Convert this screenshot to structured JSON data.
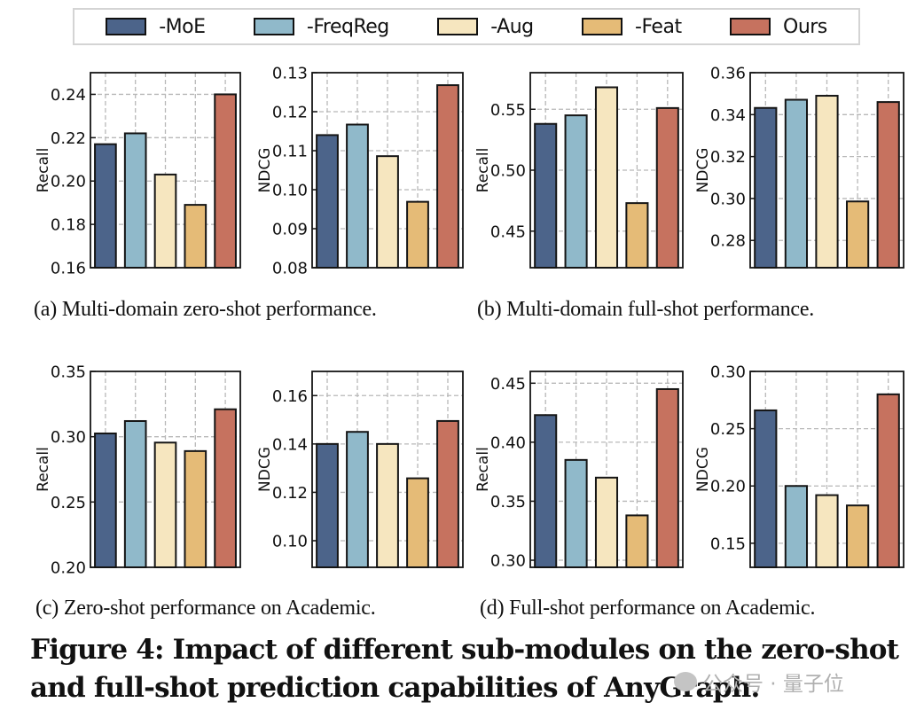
{
  "legend": {
    "items": [
      {
        "label": "-MoE",
        "color": "#4c648a"
      },
      {
        "label": "-FreqReg",
        "color": "#90b9ca"
      },
      {
        "label": "-Aug",
        "color": "#f6e6bf"
      },
      {
        "label": "-Feat",
        "color": "#e5bb77"
      },
      {
        "label": "Ours",
        "color": "#c6725f"
      }
    ]
  },
  "captions": {
    "a": "(a)  Multi-domain zero-shot performance.",
    "b": "(b)  Multi-domain full-shot performance.",
    "c": "(c)  Zero-shot performance on Academic.",
    "d": "(d)  Full-shot performance on Academic."
  },
  "figure_caption": {
    "line1": "Figure 4: Impact of different sub-modules on the zero-shot",
    "line2": "and full-shot prediction capabilities of AnyGraph."
  },
  "watermark": "公众号 · 量子位",
  "chart_data": [
    {
      "type": "bar",
      "panel": "a-left",
      "title": "",
      "xlabel": "",
      "ylabel": "Recall",
      "categories": [
        "-MoE",
        "-FreqReg",
        "-Aug",
        "-Feat",
        "Ours"
      ],
      "values": [
        0.217,
        0.222,
        0.203,
        0.189,
        0.24
      ],
      "ylim": [
        0.16,
        0.25
      ],
      "yticks": [
        0.16,
        0.18,
        0.2,
        0.22,
        0.24
      ],
      "ytick_labels": [
        "0.16",
        "0.18",
        "0.20",
        "0.22",
        "0.24"
      ],
      "grid": true
    },
    {
      "type": "bar",
      "panel": "a-right",
      "title": "",
      "xlabel": "",
      "ylabel": "NDCG",
      "categories": [
        "-MoE",
        "-FreqReg",
        "-Aug",
        "-Feat",
        "Ours"
      ],
      "values": [
        0.114,
        0.1167,
        0.1086,
        0.0969,
        0.1268
      ],
      "ylim": [
        0.08,
        0.13
      ],
      "yticks": [
        0.08,
        0.09,
        0.1,
        0.11,
        0.12,
        0.13
      ],
      "ytick_labels": [
        "0.08",
        "0.09",
        "0.10",
        "0.11",
        "0.12",
        "0.13"
      ],
      "grid": true
    },
    {
      "type": "bar",
      "panel": "b-left",
      "title": "",
      "xlabel": "",
      "ylabel": "Recall",
      "categories": [
        "-MoE",
        "-FreqReg",
        "-Aug",
        "-Feat",
        "Ours"
      ],
      "values": [
        0.538,
        0.545,
        0.568,
        0.473,
        0.551
      ],
      "ylim": [
        0.42,
        0.58
      ],
      "yticks": [
        0.45,
        0.5,
        0.55
      ],
      "ytick_labels": [
        "0.45",
        "0.50",
        "0.55"
      ],
      "grid": true
    },
    {
      "type": "bar",
      "panel": "b-right",
      "title": "",
      "xlabel": "",
      "ylabel": "NDCG",
      "categories": [
        "-MoE",
        "-FreqReg",
        "-Aug",
        "-Feat",
        "Ours"
      ],
      "values": [
        0.3432,
        0.3471,
        0.349,
        0.2986,
        0.346
      ],
      "ylim": [
        0.267,
        0.36
      ],
      "yticks": [
        0.28,
        0.3,
        0.32,
        0.34,
        0.36
      ],
      "ytick_labels": [
        "0.28",
        "0.30",
        "0.32",
        "0.34",
        "0.36"
      ],
      "grid": true
    },
    {
      "type": "bar",
      "panel": "c-left",
      "title": "",
      "xlabel": "",
      "ylabel": "Recall",
      "categories": [
        "-MoE",
        "-FreqReg",
        "-Aug",
        "-Feat",
        "Ours"
      ],
      "values": [
        0.3025,
        0.312,
        0.2955,
        0.289,
        0.321
      ],
      "ylim": [
        0.2,
        0.35
      ],
      "yticks": [
        0.2,
        0.25,
        0.3,
        0.35
      ],
      "ytick_labels": [
        "0.20",
        "0.25",
        "0.30",
        "0.35"
      ],
      "grid": true
    },
    {
      "type": "bar",
      "panel": "c-right",
      "title": "",
      "xlabel": "",
      "ylabel": "NDCG",
      "categories": [
        "-MoE",
        "-FreqReg",
        "-Aug",
        "-Feat",
        "Ours"
      ],
      "values": [
        0.14,
        0.145,
        0.14,
        0.1258,
        0.1495
      ],
      "ylim": [
        0.089,
        0.17
      ],
      "yticks": [
        0.1,
        0.12,
        0.14,
        0.16
      ],
      "ytick_labels": [
        "0.10",
        "0.12",
        "0.14",
        "0.16"
      ],
      "grid": true
    },
    {
      "type": "bar",
      "panel": "d-left",
      "title": "",
      "xlabel": "",
      "ylabel": "Recall",
      "categories": [
        "-MoE",
        "-FreqReg",
        "-Aug",
        "-Feat",
        "Ours"
      ],
      "values": [
        0.423,
        0.385,
        0.37,
        0.338,
        0.445
      ],
      "ylim": [
        0.294,
        0.46
      ],
      "yticks": [
        0.3,
        0.35,
        0.4,
        0.45
      ],
      "ytick_labels": [
        "0.30",
        "0.35",
        "0.40",
        "0.45"
      ],
      "grid": true
    },
    {
      "type": "bar",
      "panel": "d-right",
      "title": "",
      "xlabel": "",
      "ylabel": "NDCG",
      "categories": [
        "-MoE",
        "-FreqReg",
        "-Aug",
        "-Feat",
        "Ours"
      ],
      "values": [
        0.266,
        0.2,
        0.192,
        0.183,
        0.28
      ],
      "ylim": [
        0.129,
        0.3
      ],
      "yticks": [
        0.15,
        0.2,
        0.25,
        0.3
      ],
      "ytick_labels": [
        "0.15",
        "0.20",
        "0.25",
        "0.30"
      ],
      "grid": true
    }
  ]
}
